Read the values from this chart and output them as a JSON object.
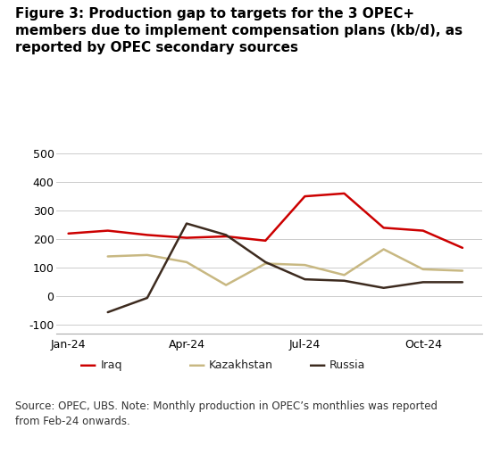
{
  "title_line1": "Figure 3: Production gap to targets for the 3 OPEC+",
  "title_line2": "members due to implement compensation plans (kb/d), as",
  "title_line3": "reported by OPEC secondary sources",
  "footnote": "Source: OPEC, UBS. Note: Monthly production in OPEC’s monthlies was reported\nfrom Feb-24 onwards.",
  "x_tick_labels": [
    "Jan-24",
    "Apr-24",
    "Jul-24",
    "Oct-24"
  ],
  "x_tick_positions": [
    0,
    3,
    6,
    9
  ],
  "ylim": [
    -130,
    560
  ],
  "yticks": [
    -100,
    0,
    100,
    200,
    300,
    400,
    500
  ],
  "iraq": {
    "x": [
      0,
      1,
      2,
      3,
      4,
      5,
      6,
      7,
      8,
      9,
      10
    ],
    "y": [
      220,
      230,
      215,
      205,
      210,
      195,
      350,
      360,
      240,
      230,
      170
    ],
    "color": "#cc0000",
    "label": "Iraq",
    "linewidth": 1.8
  },
  "kazakhstan": {
    "x": [
      1,
      2,
      3,
      4,
      5,
      6,
      7,
      8,
      9,
      10
    ],
    "y": [
      140,
      145,
      120,
      40,
      115,
      110,
      75,
      165,
      95,
      90
    ],
    "color": "#c8b882",
    "label": "Kazakhstan",
    "linewidth": 1.8
  },
  "russia": {
    "x": [
      1,
      2,
      3,
      4,
      5,
      6,
      7,
      8,
      9,
      10
    ],
    "y": [
      -55,
      -5,
      255,
      215,
      120,
      60,
      55,
      30,
      50,
      50
    ],
    "color": "#3d2b1f",
    "label": "Russia",
    "linewidth": 1.8
  },
  "background_color": "#ffffff",
  "grid_color": "#cccccc",
  "title_fontsize": 11,
  "axis_fontsize": 9,
  "legend_fontsize": 9,
  "footnote_fontsize": 8.5
}
